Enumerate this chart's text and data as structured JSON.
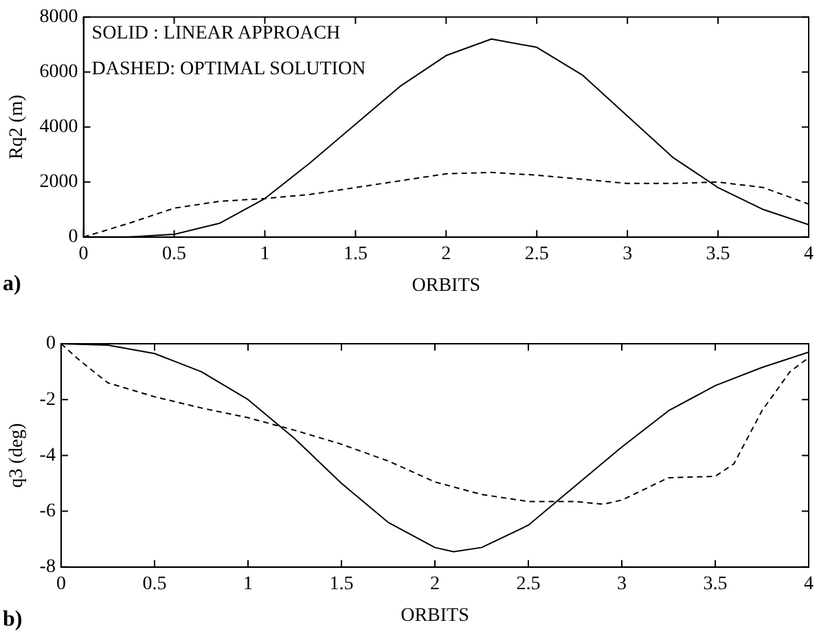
{
  "chart_data": [
    {
      "type": "line",
      "ylabel": "Rq2 (m)",
      "xlabel": "ORBITS",
      "xlim": [
        0,
        4
      ],
      "xticks": [
        0,
        0.5,
        1,
        1.5,
        2,
        2.5,
        3,
        3.5,
        4
      ],
      "ylim": [
        0,
        8000
      ],
      "yticks": [
        0,
        2000,
        4000,
        6000,
        8000
      ],
      "grid": false,
      "legend": false,
      "marker": "none",
      "annotations": [
        "SOLID : LINEAR APPROACH",
        "DASHED: OPTIMAL SOLUTION",
        "a)"
      ],
      "x": [
        0,
        0.25,
        0.5,
        0.75,
        1,
        1.25,
        1.5,
        1.75,
        2,
        2.25,
        2.5,
        2.75,
        3,
        3.25,
        3.5,
        3.75,
        4
      ],
      "series": [
        {
          "color": "#000000",
          "line_style": "solid",
          "values": [
            0,
            0,
            100,
            500,
            1400,
            2700,
            4100,
            5500,
            6600,
            7200,
            6900,
            5900,
            4400,
            2900,
            1800,
            1000,
            450
          ]
        },
        {
          "color": "#000000",
          "line_style": "dashed",
          "values": [
            0,
            500,
            1050,
            1300,
            1400,
            1550,
            1800,
            2050,
            2300,
            2350,
            2250,
            2100,
            1950,
            1950,
            2000,
            1800,
            1200
          ]
        }
      ]
    },
    {
      "type": "line",
      "ylabel": "q3 (deg)",
      "xlabel": "ORBITS",
      "xlim": [
        0,
        4
      ],
      "xticks": [
        0,
        0.5,
        1,
        1.5,
        2,
        2.5,
        3,
        3.5,
        4
      ],
      "ylim": [
        -8,
        0
      ],
      "yticks": [
        -8,
        -6,
        -4,
        -2,
        0
      ],
      "grid": false,
      "legend": false,
      "marker": "none",
      "annotations": [
        "b)"
      ],
      "series": [
        {
          "color": "#000000",
          "line_style": "solid",
          "x": [
            0,
            0.25,
            0.5,
            0.75,
            1,
            1.25,
            1.5,
            1.75,
            2,
            2.1,
            2.25,
            2.5,
            2.75,
            3,
            3.25,
            3.5,
            3.75,
            4
          ],
          "values": [
            0,
            -0.05,
            -0.35,
            -1.0,
            -2.0,
            -3.4,
            -5.0,
            -6.4,
            -7.3,
            -7.45,
            -7.3,
            -6.5,
            -5.1,
            -3.7,
            -2.4,
            -1.5,
            -0.85,
            -0.3
          ]
        },
        {
          "color": "#000000",
          "line_style": "dashed",
          "x": [
            0,
            0.1,
            0.25,
            0.5,
            0.75,
            1,
            1.25,
            1.5,
            1.75,
            2,
            2.25,
            2.5,
            2.75,
            2.9,
            3,
            3.25,
            3.5,
            3.6,
            3.75,
            3.9,
            4
          ],
          "values": [
            0,
            -0.6,
            -1.4,
            -1.9,
            -2.3,
            -2.65,
            -3.1,
            -3.6,
            -4.2,
            -4.95,
            -5.4,
            -5.65,
            -5.65,
            -5.75,
            -5.6,
            -4.8,
            -4.75,
            -4.3,
            -2.4,
            -1.0,
            -0.5
          ]
        }
      ]
    }
  ]
}
